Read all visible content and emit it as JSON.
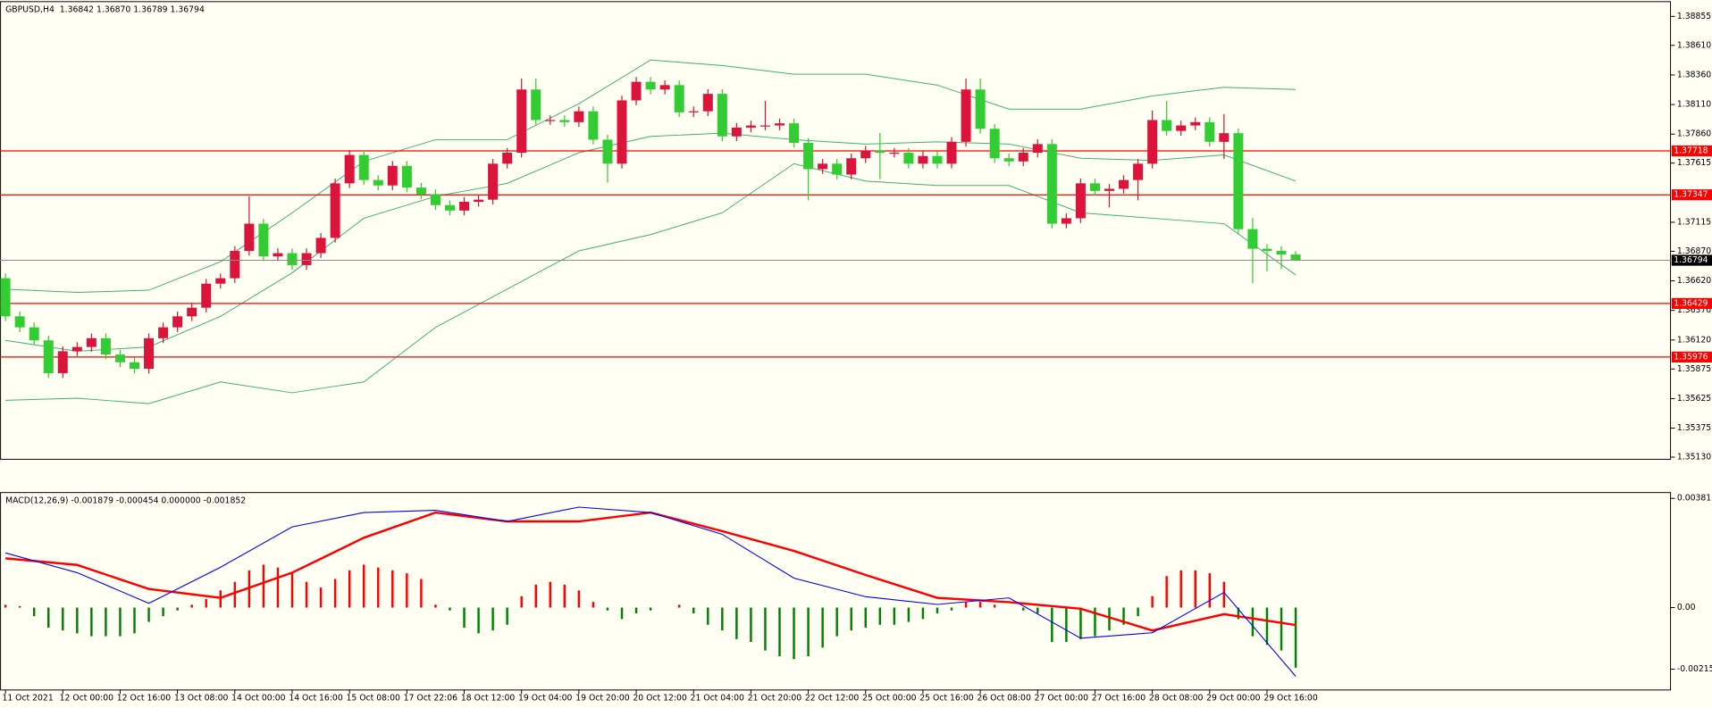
{
  "chart_data": [
    {
      "type": "candlestick",
      "title": "GBPUSD,H4  1.36842 1.36870 1.36789 1.36794",
      "categories": [
        "11 Oct 2021",
        null,
        null,
        null,
        "12 Oct 00:00",
        null,
        null,
        null,
        "12 Oct 16:00",
        null,
        null,
        null,
        "13 Oct 08:00",
        null,
        null,
        null,
        "14 Oct 00:00",
        null,
        null,
        null,
        "14 Oct 16:00",
        null,
        null,
        null,
        "15 Oct 08:00",
        null,
        null,
        null,
        "17 Oct 22:06",
        null,
        null,
        null,
        "18 Oct 12:00",
        null,
        null,
        null,
        "19 Oct 04:00",
        null,
        null,
        null,
        "19 Oct 20:00",
        null,
        null,
        null,
        "20 Oct 12:00",
        null,
        null,
        null,
        "21 Oct 04:00",
        null,
        null,
        null,
        "21 Oct 20:00",
        null,
        null,
        null,
        "22 Oct 12:00",
        null,
        null,
        null,
        "25 Oct 00:00",
        null,
        null,
        null,
        "25 Oct 16:00",
        null,
        null,
        null,
        "26 Oct 08:00",
        null,
        null,
        null,
        "27 Oct 00:00",
        null,
        null,
        null,
        "27 Oct 16:00",
        null,
        null,
        null,
        "28 Oct 08:00",
        null,
        null,
        null,
        "29 Oct 00:00",
        null,
        null,
        null,
        "29 Oct 16:00",
        null,
        null
      ],
      "open": [
        1.36642,
        1.3632,
        1.36227,
        1.36117,
        1.3584,
        1.36025,
        1.36061,
        1.36135,
        1.35997,
        1.35932,
        1.35877,
        1.36135,
        1.36227,
        1.3632,
        1.36393,
        1.36596,
        1.36642,
        1.36873,
        1.37103,
        1.36827,
        1.36854,
        1.36753,
        1.36854,
        1.36983,
        1.37444,
        1.37684,
        1.37472,
        1.37426,
        1.37592,
        1.37408,
        1.37352,
        1.3726,
        1.37214,
        1.37288,
        1.37306,
        1.3761,
        1.37703,
        1.38237,
        1.37979,
        1.37979,
        1.37961,
        1.38053,
        1.37813,
        1.3761,
        1.38145,
        1.38302,
        1.38237,
        1.38274,
        1.38044,
        1.38053,
        1.382,
        1.37841,
        1.37915,
        1.37933,
        1.37933,
        1.37951,
        1.37786,
        1.37564,
        1.3761,
        1.37518,
        1.37656,
        1.37721,
        1.37703,
        1.37703,
        1.3761,
        1.37675,
        1.3761,
        1.37795,
        1.38237,
        1.37905,
        1.37656,
        1.37629,
        1.37703,
        1.37776,
        1.37103,
        1.37149,
        1.37444,
        1.3738,
        1.37398,
        1.37472,
        1.3761,
        1.37979,
        1.37887,
        1.37933,
        1.37961,
        1.37795,
        1.37868,
        1.37057,
        1.36891,
        1.36873,
        1.36842
      ],
      "high": [
        1.36682,
        1.3636,
        1.36267,
        1.36157,
        1.36065,
        1.36101,
        1.36175,
        1.36175,
        1.36037,
        1.35972,
        1.36175,
        1.36267,
        1.3636,
        1.36433,
        1.36636,
        1.36682,
        1.36913,
        1.37334,
        1.37143,
        1.36894,
        1.36894,
        1.36894,
        1.37023,
        1.37484,
        1.37724,
        1.37724,
        1.37512,
        1.37632,
        1.37632,
        1.37448,
        1.37392,
        1.373,
        1.37328,
        1.37346,
        1.3765,
        1.37743,
        1.3833,
        1.3833,
        1.38019,
        1.38019,
        1.38093,
        1.38093,
        1.37853,
        1.38185,
        1.38342,
        1.38342,
        1.38314,
        1.38314,
        1.38093,
        1.3824,
        1.3824,
        1.37955,
        1.37973,
        1.3814,
        1.37991,
        1.37991,
        1.37826,
        1.3765,
        1.3765,
        1.37696,
        1.37761,
        1.3787,
        1.37743,
        1.37743,
        1.37715,
        1.37715,
        1.37835,
        1.3833,
        1.3833,
        1.37945,
        1.37696,
        1.37743,
        1.37816,
        1.37816,
        1.37189,
        1.37484,
        1.37484,
        1.37438,
        1.37512,
        1.3765,
        1.3806,
        1.3814,
        1.37973,
        1.38001,
        1.38001,
        1.3803,
        1.37908,
        1.3715,
        1.36931,
        1.36913,
        1.3687
      ],
      "low": [
        1.3628,
        1.36187,
        1.36077,
        1.358,
        1.358,
        1.35985,
        1.36021,
        1.35957,
        1.35892,
        1.35837,
        1.35837,
        1.36095,
        1.36187,
        1.3628,
        1.36353,
        1.36556,
        1.36602,
        1.36833,
        1.36787,
        1.36787,
        1.36713,
        1.36713,
        1.36814,
        1.36943,
        1.37404,
        1.37432,
        1.37386,
        1.37386,
        1.37368,
        1.37312,
        1.3722,
        1.37174,
        1.37174,
        1.37248,
        1.37266,
        1.3757,
        1.37663,
        1.37939,
        1.37939,
        1.37921,
        1.37921,
        1.37773,
        1.3745,
        1.3757,
        1.38105,
        1.38197,
        1.38197,
        1.38004,
        1.38004,
        1.38013,
        1.37801,
        1.37801,
        1.37875,
        1.37893,
        1.37893,
        1.37746,
        1.373,
        1.37524,
        1.37478,
        1.37478,
        1.37616,
        1.3748,
        1.37663,
        1.3757,
        1.3757,
        1.3757,
        1.3757,
        1.37755,
        1.37865,
        1.37616,
        1.37589,
        1.37589,
        1.37663,
        1.37063,
        1.37063,
        1.37109,
        1.3734,
        1.3724,
        1.37358,
        1.373,
        1.3757,
        1.37847,
        1.37847,
        1.37893,
        1.37755,
        1.3765,
        1.37017,
        1.366,
        1.367,
        1.3672,
        1.36789
      ],
      "close": [
        1.3632,
        1.36227,
        1.36117,
        1.3584,
        1.36025,
        1.36061,
        1.36135,
        1.35997,
        1.35932,
        1.35877,
        1.36135,
        1.36227,
        1.3632,
        1.36393,
        1.36596,
        1.36642,
        1.36873,
        1.37103,
        1.36827,
        1.36854,
        1.36753,
        1.36854,
        1.36983,
        1.37444,
        1.37684,
        1.37472,
        1.37426,
        1.37592,
        1.37408,
        1.37352,
        1.3726,
        1.37214,
        1.37288,
        1.37306,
        1.3761,
        1.37703,
        1.38237,
        1.37979,
        1.37979,
        1.37961,
        1.38053,
        1.37813,
        1.3761,
        1.38145,
        1.38302,
        1.38237,
        1.38274,
        1.38044,
        1.38053,
        1.382,
        1.37841,
        1.37915,
        1.37933,
        1.37933,
        1.37951,
        1.37786,
        1.37564,
        1.3761,
        1.37518,
        1.37656,
        1.37721,
        1.37703,
        1.37703,
        1.3761,
        1.37675,
        1.3761,
        1.37795,
        1.38237,
        1.37905,
        1.37656,
        1.37629,
        1.37703,
        1.37776,
        1.37103,
        1.37149,
        1.37444,
        1.3738,
        1.37398,
        1.37472,
        1.3761,
        1.37979,
        1.37887,
        1.37933,
        1.37961,
        1.37795,
        1.37868,
        1.37057,
        1.36891,
        1.36873,
        1.36842,
        1.36794
      ],
      "up_color": "#dc143c",
      "down_color": "#32cd32",
      "ylim": [
        1.35112,
        1.38975
      ],
      "yticks": [
        {
          "value": 1.38855,
          "label": "1.38855"
        },
        {
          "value": 1.3861,
          "label": "1.38610"
        },
        {
          "value": 1.3836,
          "label": "1.38360"
        },
        {
          "value": 1.3811,
          "label": "1.38110"
        },
        {
          "value": 1.3786,
          "label": "1.37860"
        },
        {
          "value": 1.37615,
          "label": "1.37615"
        },
        {
          "value": 1.37115,
          "label": "1.37115"
        },
        {
          "value": 1.3687,
          "label": "1.36870"
        },
        {
          "value": 1.3662,
          "label": "1.36620"
        },
        {
          "value": 1.3637,
          "label": "1.36370"
        },
        {
          "value": 1.3612,
          "label": "1.36120"
        },
        {
          "value": 1.35875,
          "label": "1.35875"
        },
        {
          "value": 1.35625,
          "label": "1.35625"
        },
        {
          "value": 1.35375,
          "label": "1.35375"
        },
        {
          "value": 1.3513,
          "label": "1.35130"
        }
      ],
      "levels": [
        1.37718,
        1.37347,
        1.36429,
        1.35976
      ],
      "level_color": "#ff0000",
      "price_line_color": "#8c8c8c",
      "bands": {
        "index": [
          0,
          5,
          10,
          15,
          20,
          25,
          30,
          35,
          40,
          45,
          50,
          55,
          60,
          65,
          70,
          75,
          80,
          85,
          90
        ],
        "upper": [
          1.3655,
          1.36522,
          1.36541,
          1.36781,
          1.37195,
          1.37629,
          1.37813,
          1.37813,
          1.38117,
          1.38486,
          1.3844,
          1.38366,
          1.38366,
          1.38274,
          1.38071,
          1.38071,
          1.38182,
          1.38256,
          1.38237
        ],
        "middle": [
          1.36117,
          1.36025,
          1.36061,
          1.3632,
          1.36688,
          1.37149,
          1.37334,
          1.37444,
          1.37703,
          1.37841,
          1.37868,
          1.37813,
          1.37776,
          1.37795,
          1.37776,
          1.37656,
          1.37638,
          1.37684,
          1.37463
        ],
        "lower": [
          1.3561,
          1.35628,
          1.35582,
          1.35766,
          1.35674,
          1.35766,
          1.36227,
          1.3655,
          1.36873,
          1.37011,
          1.37195,
          1.3761,
          1.37463,
          1.37426,
          1.37426,
          1.37195,
          1.37149,
          1.37103,
          1.3667
        ],
        "color": "#3cb371"
      }
    },
    {
      "type": "macd",
      "title": "MACD(12,26,9) -0.001879 -0.000454 0.000000 -0.001852",
      "histogram": [
        0.0001,
        5e-05,
        -0.0003,
        -0.0007,
        -0.0008,
        -0.0009,
        -0.001,
        -0.001,
        -0.001,
        -0.0009,
        -0.0005,
        -0.0003,
        -0.0001,
        0.0001,
        0.0003,
        0.0006,
        0.0009,
        0.0013,
        0.0015,
        0.0014,
        0.0012,
        0.0009,
        0.0007,
        0.001,
        0.0013,
        0.0015,
        0.0014,
        0.0013,
        0.0012,
        0.001,
        0.0001,
        -0.0001,
        -0.0007,
        -0.0009,
        -0.0008,
        -0.0006,
        0.0004,
        0.0008,
        0.0009,
        0.0008,
        0.0006,
        0.0002,
        -0.0001,
        -0.0004,
        -0.0002,
        -0.0001,
        0,
        0.0001,
        -0.0002,
        -0.0006,
        -0.0008,
        -0.0011,
        -0.0012,
        -0.0015,
        -0.0017,
        -0.0018,
        -0.0017,
        -0.0014,
        -0.001,
        -0.0008,
        -0.0007,
        -0.0006,
        -0.0006,
        -0.0005,
        -0.0004,
        -0.0002,
        -0.0001,
        0.0002,
        0.0002,
        0.0001,
        0,
        -0.0001,
        -0.0002,
        -0.0012,
        -0.0012,
        -0.0011,
        -0.001,
        -0.0008,
        -0.0006,
        -0.0003,
        0.0004,
        0.0011,
        0.0013,
        0.0013,
        0.0012,
        0.0009,
        -0.0004,
        -0.001,
        -0.0013,
        -0.0015,
        -0.0021
      ],
      "positive_color": "#ff0000",
      "negative_color": "#008000",
      "macd_line": {
        "index": [
          0,
          5,
          10,
          15,
          20,
          25,
          30,
          35,
          40,
          45,
          50,
          55,
          60,
          65,
          70,
          75,
          80,
          85,
          90
        ],
        "values": [
          0.00191,
          0.00122,
          0.00015,
          0.00141,
          0.00282,
          0.00332,
          0.0034,
          0.00301,
          0.00351,
          0.00332,
          0.00256,
          0.00103,
          0.00038,
          0.00011,
          0.00034,
          -0.00107,
          -0.00088,
          0.00053,
          -0.0024
        ],
        "color": "#0000ff"
      },
      "signal_line": {
        "index": [
          0,
          5,
          10,
          15,
          20,
          25,
          30,
          35,
          40,
          45,
          50,
          55,
          60,
          65,
          70,
          75,
          80,
          85,
          90
        ],
        "values": [
          0.00172,
          0.00149,
          0.00065,
          0.00034,
          0.00122,
          0.00244,
          0.00332,
          0.00301,
          0.00301,
          0.00332,
          0.00267,
          0.00198,
          0.00114,
          0.00034,
          0.00019,
          -4e-05,
          -0.0008,
          -0.00023,
          -0.00061
        ],
        "color": "#ff0000"
      },
      "ylim": [
        -0.00286,
        0.004
      ],
      "yticks": [
        0.003815,
        {
          "value": 0,
          "label": "0.00"
        },
        -0.00215
      ]
    }
  ]
}
